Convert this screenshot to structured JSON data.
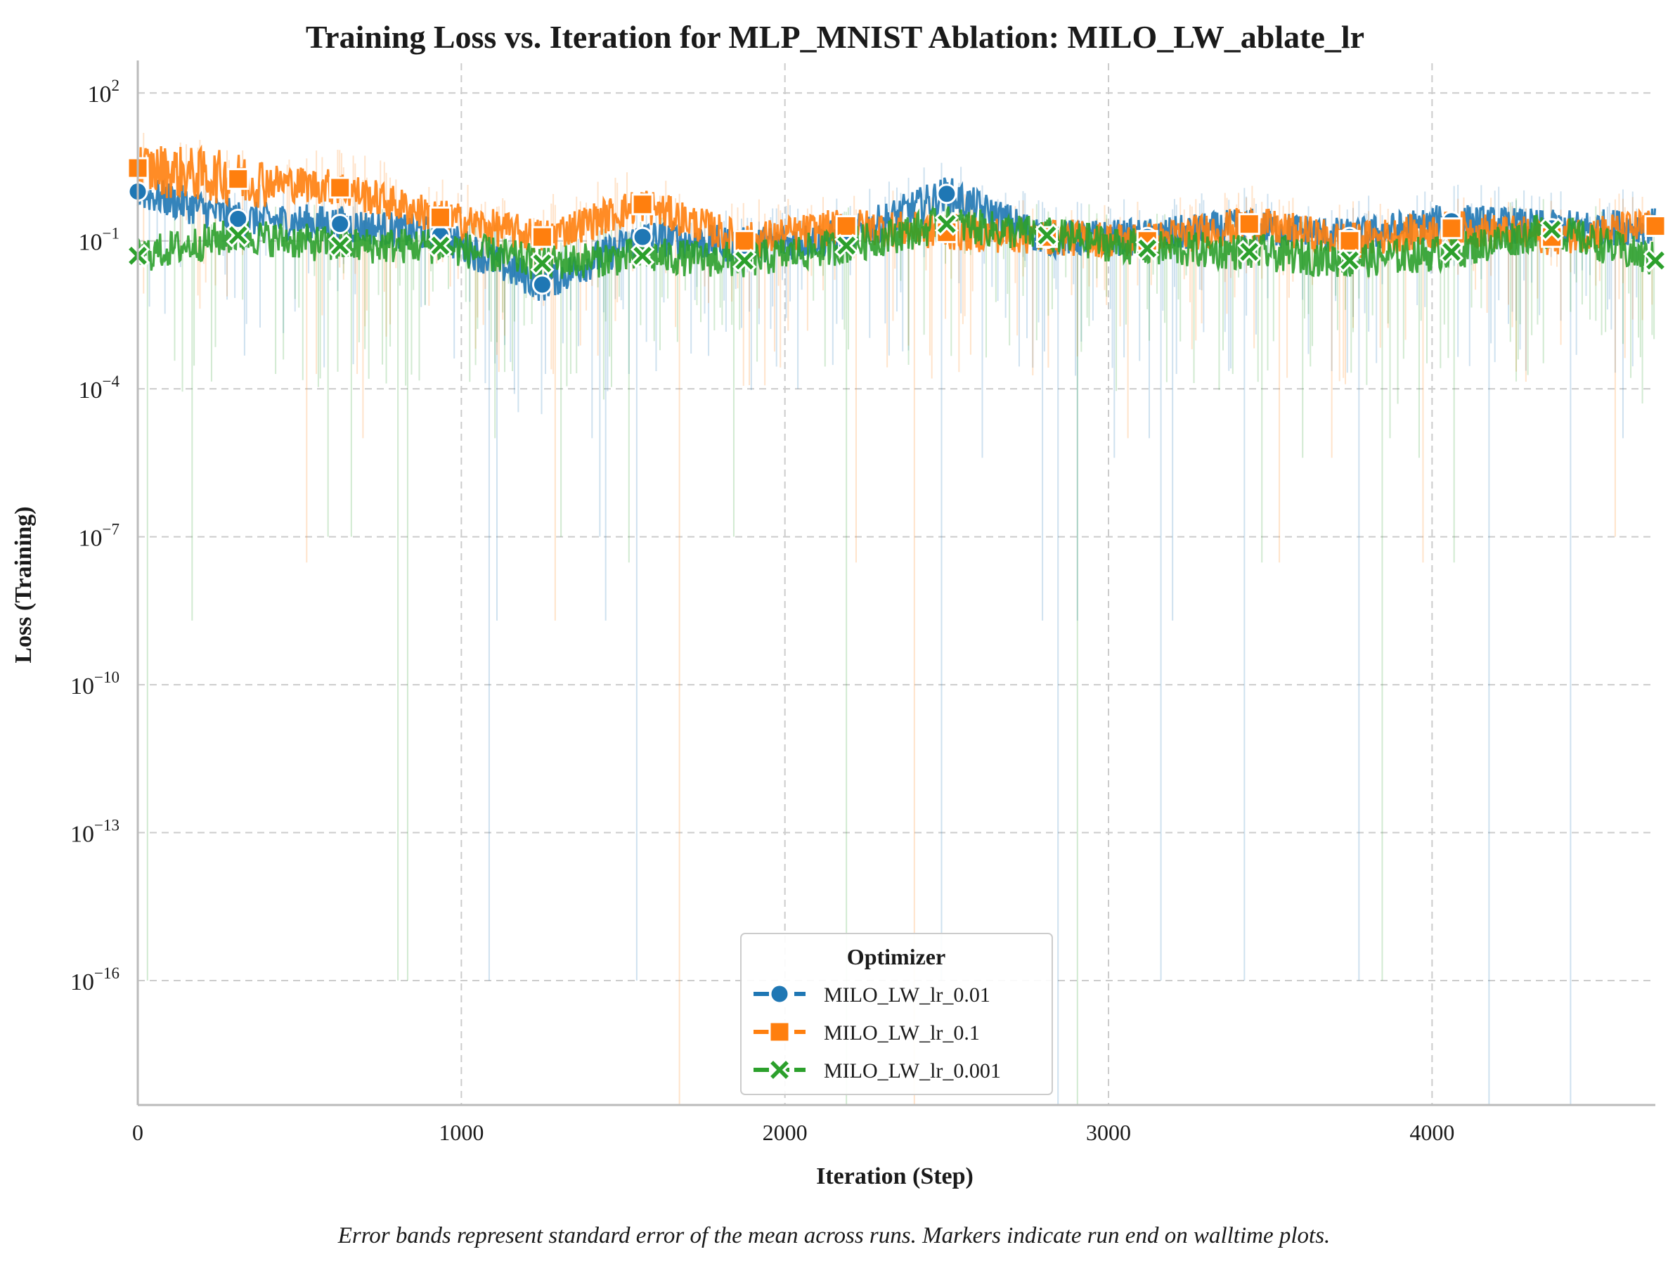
{
  "chart_data": {
    "type": "line",
    "title": "Training Loss vs. Iteration for MLP_MNIST Ablation: MILO_LW_ablate_lr",
    "xlabel": "Iteration (Step)",
    "ylabel": "Loss (Training)",
    "x_ticks": [
      0,
      1000,
      2000,
      3000,
      4000
    ],
    "xlim": [
      0,
      4690
    ],
    "y_scale": "log",
    "y_tick_exponents": [
      2,
      -1,
      -4,
      -7,
      -10,
      -13,
      -16
    ],
    "ylim": [
      3e-19,
      400
    ],
    "grid": true,
    "legend": {
      "title": "Optimizer",
      "placement": "bottom-center"
    },
    "series": [
      {
        "name": "MILO_LW_lr_0.01",
        "color": "#1f77b4",
        "marker": "circle",
        "points": [
          [
            0,
            1.0
          ],
          [
            310,
            0.28
          ],
          [
            625,
            0.22
          ],
          [
            935,
            0.13
          ],
          [
            1250,
            0.013
          ],
          [
            1560,
            0.12
          ],
          [
            1875,
            0.08
          ],
          [
            2190,
            0.12
          ],
          [
            2500,
            0.9
          ],
          [
            2810,
            0.11
          ],
          [
            3120,
            0.12
          ],
          [
            3435,
            0.2
          ],
          [
            3745,
            0.12
          ],
          [
            4060,
            0.25
          ],
          [
            4370,
            0.18
          ],
          [
            4690,
            0.2
          ]
        ]
      },
      {
        "name": "MILO_LW_lr_0.1",
        "color": "#ff7f0e",
        "marker": "square",
        "points": [
          [
            0,
            3.0
          ],
          [
            310,
            1.8
          ],
          [
            625,
            1.2
          ],
          [
            935,
            0.3
          ],
          [
            1250,
            0.12
          ],
          [
            1560,
            0.55
          ],
          [
            1875,
            0.1
          ],
          [
            2190,
            0.2
          ],
          [
            2500,
            0.15
          ],
          [
            2810,
            0.12
          ],
          [
            3120,
            0.1
          ],
          [
            3435,
            0.22
          ],
          [
            3745,
            0.1
          ],
          [
            4060,
            0.18
          ],
          [
            4370,
            0.12
          ],
          [
            4690,
            0.2
          ]
        ]
      },
      {
        "name": "MILO_LW_lr_0.001",
        "color": "#2ca02c",
        "marker": "x",
        "points": [
          [
            0,
            0.05
          ],
          [
            310,
            0.13
          ],
          [
            625,
            0.08
          ],
          [
            935,
            0.08
          ],
          [
            1250,
            0.035
          ],
          [
            1560,
            0.05
          ],
          [
            1875,
            0.04
          ],
          [
            2190,
            0.08
          ],
          [
            2500,
            0.22
          ],
          [
            2810,
            0.13
          ],
          [
            3120,
            0.07
          ],
          [
            3435,
            0.06
          ],
          [
            3745,
            0.04
          ],
          [
            4060,
            0.06
          ],
          [
            4370,
            0.17
          ],
          [
            4690,
            0.04
          ]
        ]
      }
    ],
    "error_band_note": "Error bands represent standard error of the mean across runs. Markers indicate run end on walltime plots."
  }
}
